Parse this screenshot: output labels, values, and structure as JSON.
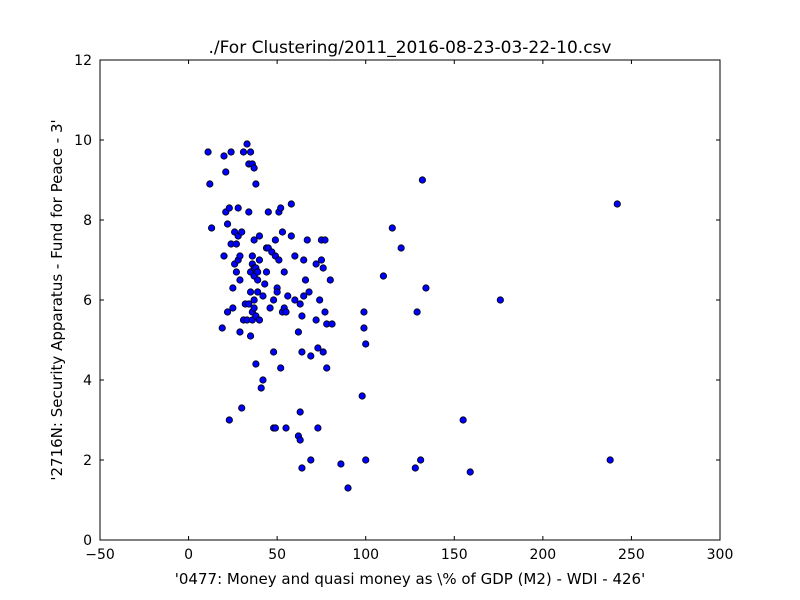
{
  "chart_data": {
    "type": "scatter",
    "title": "./For Clustering/2011_2016-08-23-03-22-10.csv",
    "xlabel": "'0477: Money and quasi money  as \\% of GDP (M2) - WDI - 426'",
    "ylabel": "'2716N: Security Apparatus - Fund for Peace - 3'",
    "xlim": [
      -50,
      300
    ],
    "ylim": [
      0,
      12
    ],
    "xticks": [
      -50,
      0,
      50,
      100,
      150,
      200,
      250,
      300
    ],
    "yticks": [
      0,
      2,
      4,
      6,
      8,
      10,
      12
    ],
    "xtick_labels": [
      "−50",
      "0",
      "50",
      "100",
      "150",
      "200",
      "250",
      "300"
    ],
    "ytick_labels": [
      "0",
      "2",
      "4",
      "6",
      "8",
      "10",
      "12"
    ],
    "grid": false,
    "legend": "none",
    "marker_color": "#0000ff",
    "marker_edge_color": "#000000",
    "points": [
      [
        11,
        9.7
      ],
      [
        12,
        8.9
      ],
      [
        13,
        7.8
      ],
      [
        19,
        5.3
      ],
      [
        20,
        9.6
      ],
      [
        20,
        7.1
      ],
      [
        21,
        9.2
      ],
      [
        21,
        8.2
      ],
      [
        22,
        5.7
      ],
      [
        22,
        7.9
      ],
      [
        23,
        8.3
      ],
      [
        23,
        3.0
      ],
      [
        24,
        9.7
      ],
      [
        24,
        7.4
      ],
      [
        25,
        6.3
      ],
      [
        25,
        5.8
      ],
      [
        26,
        6.9
      ],
      [
        26,
        7.7
      ],
      [
        27,
        6.7
      ],
      [
        27,
        7.4
      ],
      [
        28,
        7.0
      ],
      [
        28,
        8.3
      ],
      [
        28,
        7.6
      ],
      [
        29,
        5.2
      ],
      [
        29,
        6.5
      ],
      [
        29,
        7.1
      ],
      [
        30,
        7.7
      ],
      [
        30,
        3.3
      ],
      [
        31,
        9.7
      ],
      [
        31,
        5.5
      ],
      [
        32,
        5.9
      ],
      [
        33,
        9.9
      ],
      [
        33,
        5.5
      ],
      [
        34,
        8.2
      ],
      [
        34,
        5.9
      ],
      [
        34,
        9.4
      ],
      [
        35,
        9.7
      ],
      [
        35,
        5.1
      ],
      [
        35,
        6.7
      ],
      [
        35,
        6.2
      ],
      [
        36,
        6.9
      ],
      [
        36,
        9.4
      ],
      [
        36,
        7.1
      ],
      [
        36,
        5.7
      ],
      [
        36,
        5.5
      ],
      [
        37,
        6.0
      ],
      [
        37,
        5.8
      ],
      [
        37,
        9.3
      ],
      [
        37,
        7.5
      ],
      [
        37,
        6.8
      ],
      [
        37,
        6.6
      ],
      [
        38,
        8.9
      ],
      [
        38,
        4.4
      ],
      [
        38,
        5.6
      ],
      [
        38,
        6.8
      ],
      [
        39,
        6.5
      ],
      [
        39,
        6.2
      ],
      [
        39,
        6.7
      ],
      [
        40,
        7.6
      ],
      [
        40,
        7.0
      ],
      [
        40,
        5.5
      ],
      [
        41,
        3.8
      ],
      [
        42,
        6.1
      ],
      [
        42,
        4.0
      ],
      [
        43,
        6.4
      ],
      [
        44,
        7.3
      ],
      [
        44,
        6.7
      ],
      [
        45,
        8.2
      ],
      [
        45,
        7.3
      ],
      [
        46,
        5.8
      ],
      [
        47,
        7.2
      ],
      [
        48,
        4.7
      ],
      [
        48,
        6.0
      ],
      [
        48,
        2.8
      ],
      [
        49,
        2.8
      ],
      [
        49,
        7.5
      ],
      [
        49,
        7.1
      ],
      [
        50,
        6.3
      ],
      [
        50,
        6.2
      ],
      [
        51,
        8.2
      ],
      [
        51,
        7.0
      ],
      [
        52,
        8.3
      ],
      [
        52,
        4.3
      ],
      [
        53,
        5.7
      ],
      [
        53,
        7.7
      ],
      [
        54,
        6.7
      ],
      [
        54,
        5.8
      ],
      [
        55,
        5.7
      ],
      [
        55,
        2.8
      ],
      [
        56,
        6.1
      ],
      [
        58,
        7.6
      ],
      [
        58,
        8.4
      ],
      [
        60,
        7.1
      ],
      [
        60,
        6.0
      ],
      [
        62,
        2.6
      ],
      [
        62,
        5.2
      ],
      [
        63,
        5.9
      ],
      [
        63,
        3.2
      ],
      [
        63,
        2.5
      ],
      [
        64,
        1.8
      ],
      [
        64,
        4.7
      ],
      [
        64,
        5.6
      ],
      [
        65,
        6.1
      ],
      [
        65,
        7.0
      ],
      [
        66,
        6.5
      ],
      [
        67,
        7.5
      ],
      [
        68,
        6.2
      ],
      [
        69,
        2.0
      ],
      [
        69,
        4.6
      ],
      [
        72,
        5.5
      ],
      [
        72,
        6.9
      ],
      [
        73,
        4.8
      ],
      [
        73,
        2.8
      ],
      [
        74,
        6.0
      ],
      [
        75,
        7.0
      ],
      [
        75,
        7.5
      ],
      [
        76,
        4.7
      ],
      [
        76,
        6.8
      ],
      [
        77,
        7.5
      ],
      [
        77,
        5.7
      ],
      [
        78,
        5.4
      ],
      [
        78,
        4.3
      ],
      [
        80,
        6.5
      ],
      [
        81,
        5.4
      ],
      [
        86,
        1.9
      ],
      [
        90,
        1.3
      ],
      [
        98,
        3.6
      ],
      [
        99,
        5.3
      ],
      [
        99,
        5.7
      ],
      [
        100,
        4.9
      ],
      [
        100,
        2.0
      ],
      [
        110,
        6.6
      ],
      [
        115,
        7.8
      ],
      [
        120,
        7.3
      ],
      [
        128,
        1.8
      ],
      [
        129,
        5.7
      ],
      [
        131,
        2.0
      ],
      [
        132,
        9.0
      ],
      [
        134,
        6.3
      ],
      [
        155,
        3.0
      ],
      [
        159,
        1.7
      ],
      [
        176,
        6.0
      ],
      [
        238,
        2.0
      ],
      [
        242,
        8.4
      ]
    ]
  }
}
